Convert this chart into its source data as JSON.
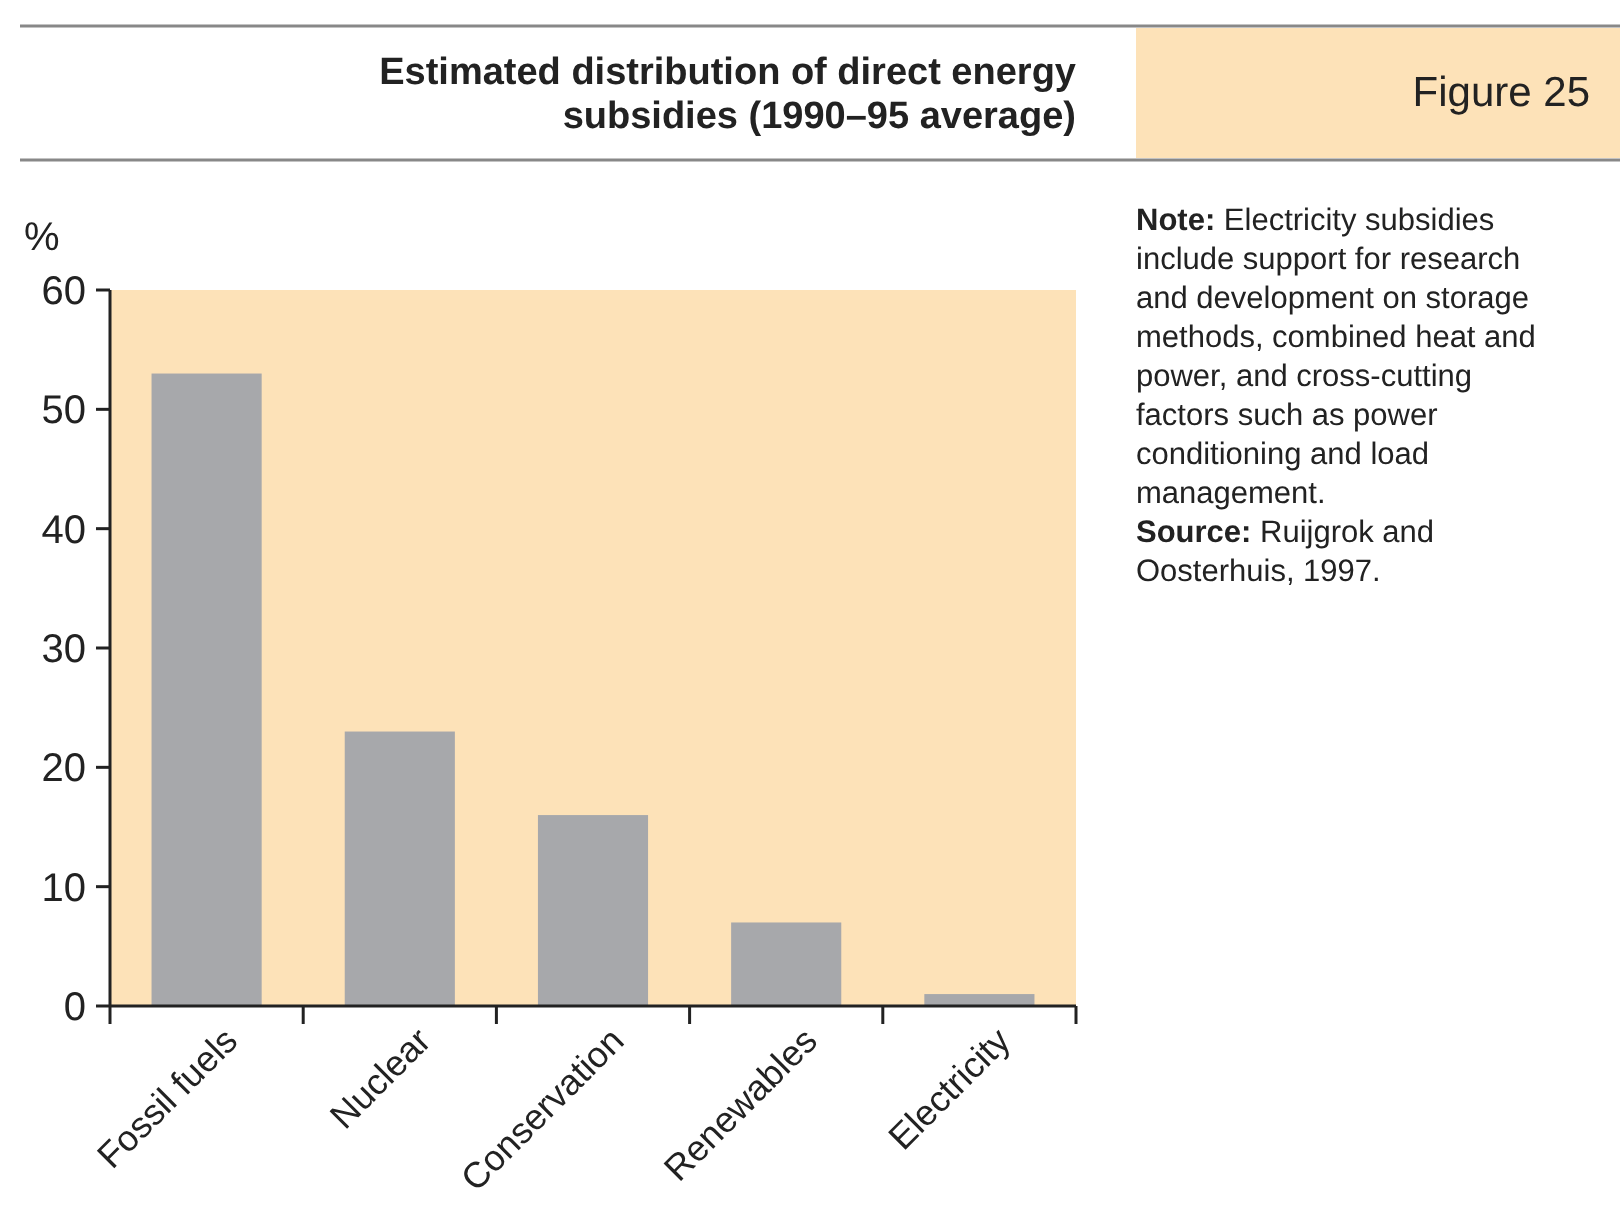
{
  "chart_data": {
    "type": "bar",
    "title": "Estimated distribution of direct energy subsidies (1990–95 average)",
    "subtitle": "Figure 25",
    "ylabel": "%",
    "categories": [
      "Fossil fuels",
      "Nuclear",
      "Conservation",
      "Renewables",
      "Electricity"
    ],
    "values": [
      53,
      23,
      16,
      7,
      1
    ],
    "color": "#a7a8ab",
    "ylim": [
      0,
      60
    ],
    "yticks": [
      0,
      10,
      20,
      30,
      40,
      50,
      60
    ],
    "grid": false,
    "annotations": [
      "Note: Electricity subsidies include support for research and development on storage methods, combined heat and power, and cross-cutting factors such as power conditioning and load management.",
      "Source: Ruijgrok and Oosterhuis, 1997."
    ]
  }
}
